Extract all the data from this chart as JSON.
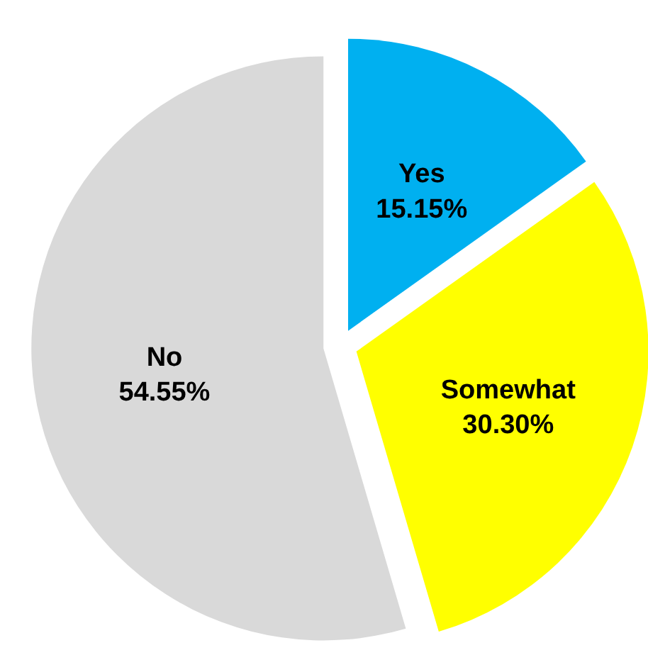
{
  "chart_data": {
    "type": "pie",
    "categories": [
      "Yes",
      "Somewhat",
      "No"
    ],
    "values": [
      15.15,
      30.3,
      54.55
    ],
    "colors": [
      "#00b0f0",
      "#ffff00",
      "#d9d9d9"
    ],
    "value_labels": [
      "15.15%",
      "30.30%",
      "54.55%"
    ]
  }
}
